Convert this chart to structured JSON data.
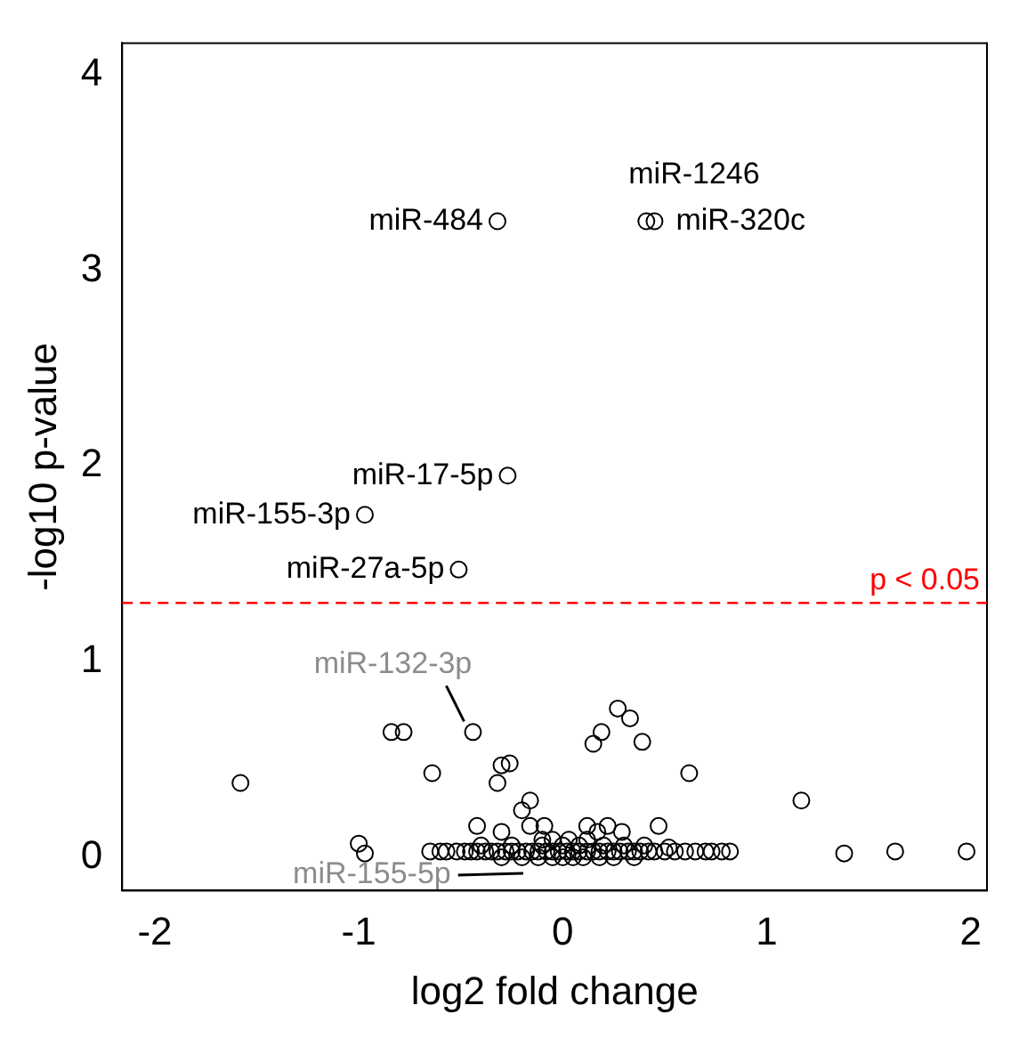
{
  "chart_data": {
    "type": "scatter",
    "xlabel": "log2 fold change",
    "ylabel": "-log10 p-value",
    "xlim": [
      -2.16,
      2.08
    ],
    "ylim": [
      -0.17,
      4.16
    ],
    "xticks": [
      -2,
      -1,
      0,
      1,
      2
    ],
    "yticks": [
      0,
      1,
      2,
      3,
      4
    ],
    "grid": false,
    "legend": false,
    "marker": "circle",
    "series": [
      {
        "color": "#000000",
        "x": [
          -0.32,
          0.41,
          0.45,
          -0.27,
          -0.97,
          -0.51,
          -0.44,
          -0.84,
          -0.78,
          -0.64,
          -1.58,
          -0.32,
          -0.3,
          -0.26,
          -0.2,
          -0.16,
          -0.16,
          -0.09,
          -0.42,
          -0.3,
          -1.0,
          -0.97,
          0.27,
          0.33,
          0.19,
          0.15,
          0.39,
          0.62,
          1.17,
          1.38,
          1.63,
          1.98,
          0.12,
          0.22,
          0.47,
          0.29,
          0.17,
          -0.65,
          -0.6,
          -0.57,
          -0.52,
          -0.48,
          -0.45,
          -0.42,
          -0.38,
          -0.35,
          -0.32,
          -0.28,
          -0.25,
          -0.22,
          -0.18,
          -0.15,
          -0.12,
          -0.08,
          -0.05,
          -0.02,
          0.02,
          0.05,
          0.08,
          0.12,
          0.15,
          0.18,
          0.22,
          0.25,
          0.28,
          0.32,
          0.35,
          0.38,
          0.42,
          0.45,
          0.5,
          0.55,
          0.6,
          0.65,
          0.7,
          0.73,
          0.78,
          0.82,
          -0.3,
          -0.2,
          -0.12,
          -0.05,
          0,
          0.05,
          0.1,
          0.18,
          0.25,
          0.35,
          -0.4,
          -0.25,
          -0.1,
          0.0,
          0.08,
          0.2,
          0.3,
          0.4,
          -0.1,
          -0.05,
          0.03,
          0.12,
          0.52
        ],
        "values": [
          3.25,
          3.25,
          3.25,
          1.95,
          1.75,
          1.47,
          0.64,
          0.64,
          0.64,
          0.43,
          0.38,
          0.38,
          0.47,
          0.48,
          0.24,
          0.29,
          0.16,
          0.16,
          0.16,
          0.13,
          0.07,
          0.02,
          0.76,
          0.71,
          0.64,
          0.58,
          0.59,
          0.43,
          0.29,
          0.02,
          0.03,
          0.03,
          0.16,
          0.16,
          0.16,
          0.13,
          0.13,
          0.03,
          0.03,
          0.03,
          0.03,
          0.03,
          0.03,
          0.03,
          0.03,
          0.03,
          0.03,
          0.03,
          0.03,
          0.03,
          0.03,
          0.03,
          0.03,
          0.03,
          0.03,
          0.03,
          0.03,
          0.03,
          0.03,
          0.03,
          0.03,
          0.03,
          0.03,
          0.03,
          0.03,
          0.03,
          0.03,
          0.03,
          0.03,
          0.03,
          0.03,
          0.03,
          0.03,
          0.03,
          0.03,
          0.03,
          0.03,
          0.03,
          0,
          0,
          0,
          0,
          0,
          0,
          0,
          0,
          0,
          0,
          0.06,
          0.06,
          0.06,
          0.06,
          0.06,
          0.06,
          0.06,
          0.06,
          0.09,
          0.09,
          0.09,
          0.09,
          0.05
        ]
      }
    ],
    "ref_lines": [
      {
        "axis": "y",
        "value": 1.3,
        "label": "p < 0.05",
        "color": "#ff0000",
        "line_style": "dashed"
      }
    ],
    "annotations": [
      {
        "text": "miR-484",
        "x": -0.32,
        "y": 3.25
      },
      {
        "text": "miR-1246",
        "x": 0.41,
        "y": 3.25
      },
      {
        "text": "miR-320c",
        "x": 0.45,
        "y": 3.25
      },
      {
        "text": "miR-17-5p",
        "x": -0.27,
        "y": 1.95
      },
      {
        "text": "miR-155-3p",
        "x": -0.97,
        "y": 1.75
      },
      {
        "text": "miR-27a-5p",
        "x": -0.51,
        "y": 1.47
      },
      {
        "text": "miR-132-3p",
        "x": -0.44,
        "y": 0.64
      },
      {
        "text": "miR-155-5p",
        "x": -0.15,
        "y": 0
      }
    ]
  }
}
